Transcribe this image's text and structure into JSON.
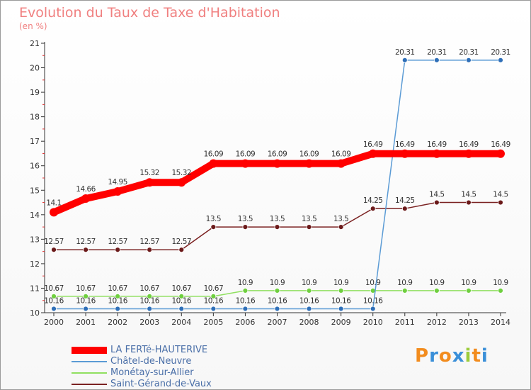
{
  "title": "Evolution du Taux de Taxe d'Habitation",
  "subtitle": "(en %)",
  "chart_data": {
    "type": "line",
    "x": [
      "2000",
      "2001",
      "2002",
      "2003",
      "2004",
      "2005",
      "2006",
      "2007",
      "2008",
      "2009",
      "2010",
      "2011",
      "2012",
      "2013",
      "2014"
    ],
    "ylim": [
      10,
      21
    ],
    "yticks": [
      10,
      11,
      12,
      13,
      14,
      15,
      16,
      17,
      18,
      19,
      20,
      21
    ],
    "grid": false,
    "legend_position": "bottom-left",
    "series": [
      {
        "name": "LA FERTé-HAUTERIVE",
        "color": "#ff0000",
        "marker_color": "#ff0000",
        "values": [
          14.1,
          14.66,
          14.95,
          15.32,
          15.32,
          16.09,
          16.09,
          16.09,
          16.09,
          16.09,
          16.49,
          16.49,
          16.49,
          16.49,
          16.49
        ],
        "labels": [
          "14.1",
          "14.66",
          "14.95",
          "15.32",
          "15.32",
          "16.09",
          "16.09",
          "16.09",
          "16.09",
          "16.09",
          "16.49",
          "16.49",
          "16.49",
          "16.49",
          "16.49"
        ]
      },
      {
        "name": "Châtel-de-Neuvre",
        "color": "#5b9bd5",
        "marker_color": "#2f6fb8",
        "values": [
          10.16,
          10.16,
          10.16,
          10.16,
          10.16,
          10.16,
          10.16,
          10.16,
          10.16,
          10.16,
          10.16,
          20.31,
          20.31,
          20.31,
          20.31
        ],
        "labels": [
          "10.16",
          "10.16",
          "10.16",
          "10.16",
          "10.16",
          "10.16",
          "10.16",
          "10.16",
          "10.16",
          "10.16",
          "10.16",
          "20.31",
          "20.31",
          "20.31",
          "20.31"
        ]
      },
      {
        "name": "Monétay-sur-Allier",
        "color": "#90e060",
        "marker_color": "#6fcf3f",
        "values": [
          10.67,
          10.67,
          10.67,
          10.67,
          10.67,
          10.67,
          10.9,
          10.9,
          10.9,
          10.9,
          10.9,
          10.9,
          10.9,
          10.9,
          10.9
        ],
        "labels": [
          "10.67",
          "10.67",
          "10.67",
          "10.67",
          "10.67",
          "10.67",
          "10.9",
          "10.9",
          "10.9",
          "10.9",
          "10.9",
          "10.9",
          "10.9",
          "10.9",
          "10.9"
        ]
      },
      {
        "name": "Saint-Gérand-de-Vaux",
        "color": "#7b2222",
        "marker_color": "#6b1a1a",
        "values": [
          12.57,
          12.57,
          12.57,
          12.57,
          12.57,
          13.5,
          13.5,
          13.5,
          13.5,
          13.5,
          14.25,
          14.25,
          14.5,
          14.5,
          14.5
        ],
        "labels": [
          "12.57",
          "12.57",
          "12.57",
          "12.57",
          "12.57",
          "13.5",
          "13.5",
          "13.5",
          "13.5",
          "13.5",
          "14.25",
          "14.25",
          "14.5",
          "14.5",
          "14.5"
        ]
      }
    ]
  },
  "legend": [
    {
      "label": "LA FERTé-HAUTERIVE",
      "color": "#ff0000"
    },
    {
      "label": "Châtel-de-Neuvre",
      "color": "#5b9bd5"
    },
    {
      "label": "Monétay-sur-Allier",
      "color": "#90e060"
    },
    {
      "label": "Saint-Gérand-de-Vaux",
      "color": "#7b2222"
    }
  ],
  "logo": {
    "text": "Proxiti",
    "letter_colors": [
      "#f28c1e",
      "#3a8fd8",
      "#f28c1e",
      "#3a8fd8",
      "#9ccc3c",
      "#f28c1e",
      "#3a8fd8"
    ]
  }
}
